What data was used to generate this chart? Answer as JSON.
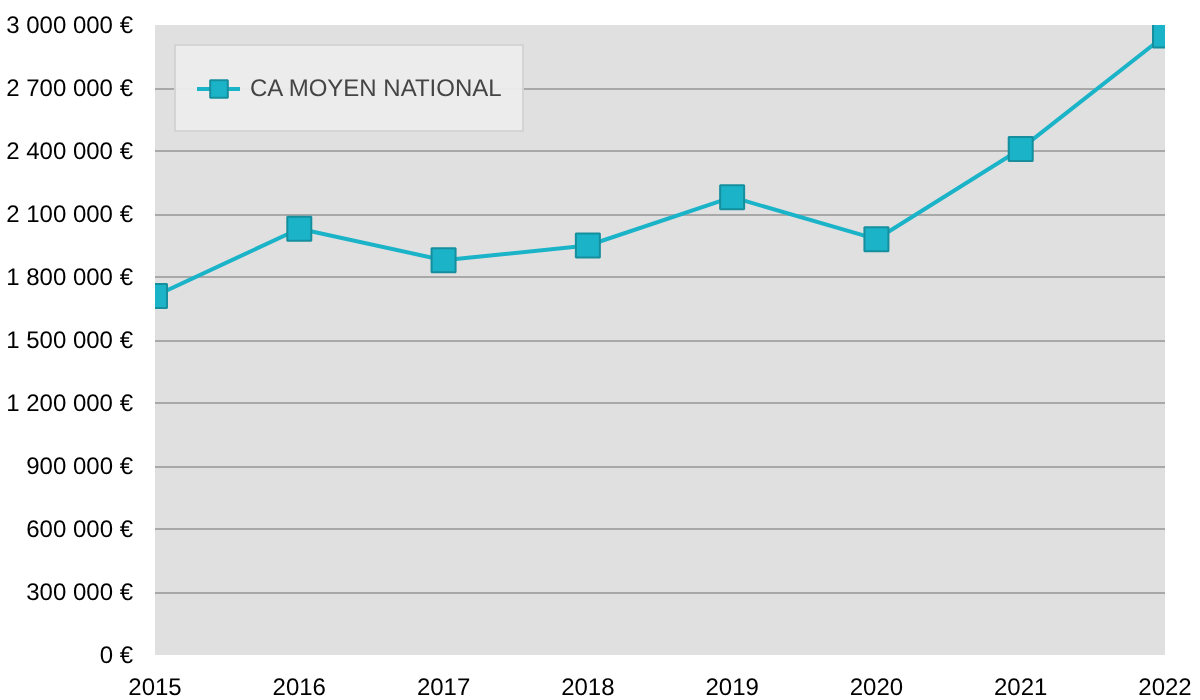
{
  "chart_data": {
    "type": "line",
    "x": [
      2015,
      2016,
      2017,
      2018,
      2019,
      2020,
      2021,
      2022
    ],
    "series": [
      {
        "name": "CA MOYEN NATIONAL",
        "color": "#1ab3c8",
        "values": [
          1710000,
          2030000,
          1880000,
          1950000,
          2180000,
          1980000,
          2410000,
          2950000
        ]
      }
    ],
    "xlim": [
      2015,
      2022
    ],
    "xticks": [
      2015,
      2016,
      2017,
      2018,
      2019,
      2020,
      2021,
      2022
    ],
    "ylim": [
      0,
      3000000
    ],
    "yticks": [
      {
        "value": 0,
        "label": "0 €"
      },
      {
        "value": 300000,
        "label": "300 000 €"
      },
      {
        "value": 600000,
        "label": "600 000 €"
      },
      {
        "value": 900000,
        "label": "900 000 €"
      },
      {
        "value": 1200000,
        "label": "1 200 000 €"
      },
      {
        "value": 1500000,
        "label": "1 500 000 €"
      },
      {
        "value": 1800000,
        "label": "1 800 000 €"
      },
      {
        "value": 2100000,
        "label": "2 100 000 €"
      },
      {
        "value": 2400000,
        "label": "2 400 000 €"
      },
      {
        "value": 2700000,
        "label": "2 700 000 €"
      },
      {
        "value": 3000000,
        "label": "3 000 000 €"
      }
    ],
    "grid": "y",
    "legend": "top left",
    "marker": "square",
    "line_style": "solid"
  }
}
